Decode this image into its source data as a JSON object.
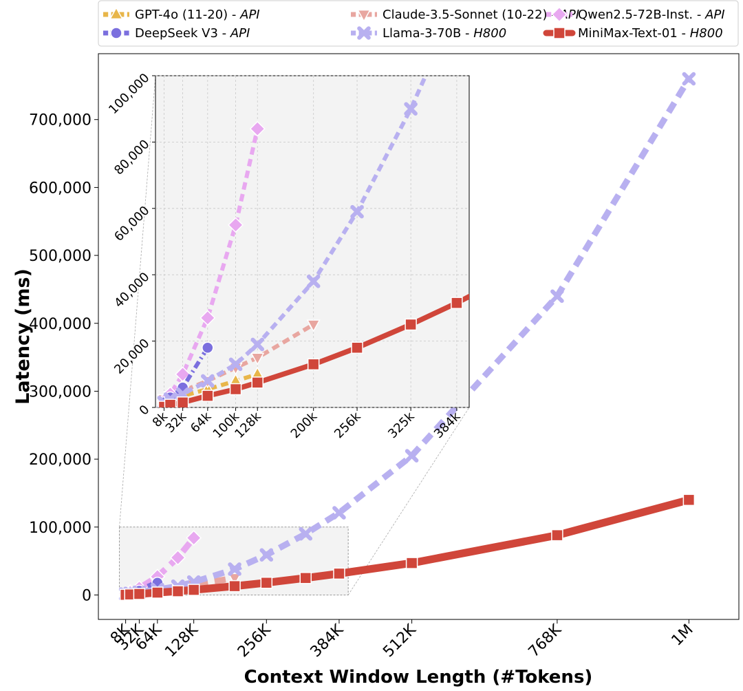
{
  "chart_data": {
    "type": "line",
    "xlabel": "Context Window Length (#Tokens)",
    "ylabel": "Latency (ms)",
    "xlim": [
      -40000,
      1088000
    ],
    "ylim": [
      -36000,
      797000
    ],
    "x_ticks": [
      {
        "value": 8000,
        "label": "8K"
      },
      {
        "value": 32000,
        "label": "32K"
      },
      {
        "value": 64000,
        "label": "64K"
      },
      {
        "value": 128000,
        "label": "128K"
      },
      {
        "value": 256000,
        "label": "256K"
      },
      {
        "value": 384000,
        "label": "384K"
      },
      {
        "value": 512000,
        "label": "512K"
      },
      {
        "value": 768000,
        "label": "768K"
      },
      {
        "value": 1000000,
        "label": "1M"
      }
    ],
    "y_ticks": [
      {
        "value": 0,
        "label": "0"
      },
      {
        "value": 100000,
        "label": "100,000"
      },
      {
        "value": 200000,
        "label": "200,000"
      },
      {
        "value": 300000,
        "label": "300,000"
      },
      {
        "value": 400000,
        "label": "400,000"
      },
      {
        "value": 500000,
        "label": "500,000"
      },
      {
        "value": 600000,
        "label": "600,000"
      },
      {
        "value": 700000,
        "label": "700,000"
      }
    ],
    "legend_position": "top",
    "series": [
      {
        "name": "GPT-4o (11-20)",
        "suffix": "API",
        "color": "#e8b64a",
        "marker": "triangle",
        "dash": "dashed",
        "x": [
          8000,
          16000,
          32000,
          64000,
          100000,
          128000
        ],
        "y": [
          1200,
          2000,
          3500,
          5500,
          8000,
          10000
        ]
      },
      {
        "name": "Claude-3.5-Sonnet (10-22)",
        "suffix": "API",
        "color": "#e8a6a0",
        "marker": "triangle-down",
        "dash": "dashed",
        "x": [
          8000,
          16000,
          32000,
          64000,
          100000,
          128000,
          200000
        ],
        "y": [
          2500,
          3500,
          5000,
          8000,
          12000,
          15000,
          25000
        ]
      },
      {
        "name": "Qwen2.5-72B-Inst.",
        "suffix": "API",
        "color": "#e8a8f0",
        "marker": "diamond",
        "dash": "dashed",
        "x": [
          8000,
          16000,
          32000,
          64000,
          100000,
          128000
        ],
        "y": [
          2000,
          4000,
          10000,
          27000,
          55000,
          84000
        ]
      },
      {
        "name": "DeepSeek V3",
        "suffix": "API",
        "color": "#7b6fde",
        "marker": "circle",
        "dash": "dashdot",
        "x": [
          8000,
          16000,
          32000,
          64000
        ],
        "y": [
          1500,
          3000,
          6000,
          18000
        ]
      },
      {
        "name": "Llama-3-70B",
        "suffix": "H800",
        "color": "#b8b0f0",
        "marker": "x",
        "dash": "dashed",
        "x": [
          8000,
          16000,
          32000,
          64000,
          100000,
          128000,
          200000,
          256000,
          325000,
          384000,
          512000,
          768000,
          1000000
        ],
        "y": [
          1500,
          2500,
          4000,
          8000,
          13000,
          19000,
          38000,
          59000,
          90000,
          121000,
          205000,
          440000,
          760000
        ]
      },
      {
        "name": "MiniMax-Text-01",
        "suffix": "H800",
        "color": "#d0463a",
        "marker": "square",
        "dash": "solid",
        "x": [
          8000,
          16000,
          32000,
          64000,
          100000,
          128000,
          200000,
          256000,
          325000,
          384000,
          512000,
          768000,
          1000000
        ],
        "y": [
          200,
          800,
          1500,
          3500,
          5500,
          7500,
          13000,
          18000,
          25000,
          31500,
          47000,
          88000,
          140000
        ]
      }
    ],
    "inset": {
      "xlim": [
        -3000,
        400000
      ],
      "ylim": [
        0,
        100000
      ],
      "x_ticks": [
        {
          "value": 8000,
          "label": "8k"
        },
        {
          "value": 32000,
          "label": "32k"
        },
        {
          "value": 64000,
          "label": "64k"
        },
        {
          "value": 100000,
          "label": "100k"
        },
        {
          "value": 128000,
          "label": "128k"
        },
        {
          "value": 200000,
          "label": "200k"
        },
        {
          "value": 256000,
          "label": "256k"
        },
        {
          "value": 325000,
          "label": "325k"
        },
        {
          "value": 384000,
          "label": "384k"
        }
      ],
      "y_ticks": [
        {
          "value": 0,
          "label": "0"
        },
        {
          "value": 20000,
          "label": "20,000"
        },
        {
          "value": 40000,
          "label": "40,000"
        },
        {
          "value": 60000,
          "label": "60,000"
        },
        {
          "value": 80000,
          "label": "80,000"
        },
        {
          "value": 100000,
          "label": "100,000"
        }
      ]
    }
  }
}
